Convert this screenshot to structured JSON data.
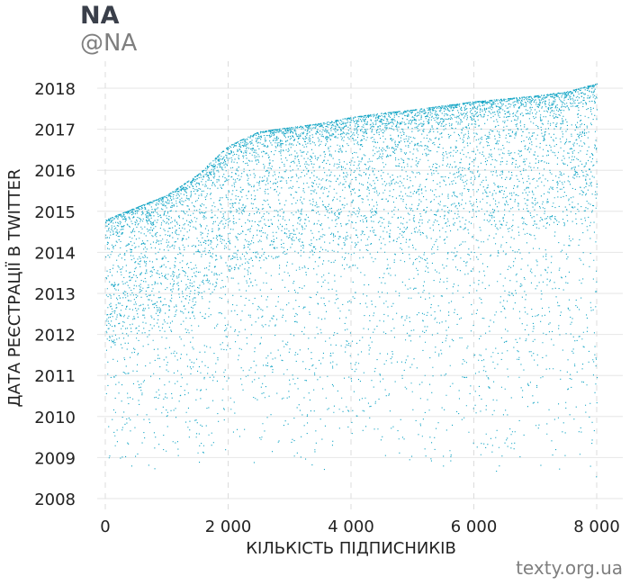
{
  "header": {
    "title": "NA",
    "subtitle": "@NA"
  },
  "footer": {
    "credit": "texty.org.ua"
  },
  "colors": {
    "points": "#0fa3c4",
    "grid": "#e6e6e6",
    "text": "#222222"
  },
  "chart_data": {
    "type": "scatter",
    "title": "NA",
    "subtitle": "@NA",
    "xlabel": "КІЛЬКІСТЬ ПІДПИСНИКІВ",
    "ylabel": "ДАТА РЕЄСТРАЦІЇ В TWITTER",
    "xlim": [
      0,
      8100
    ],
    "ylim": [
      2007.7,
      2018.3
    ],
    "x_ticks": [
      0,
      2000,
      4000,
      6000,
      8000
    ],
    "x_tick_labels": [
      "0",
      "2 000",
      "4 000",
      "6 000",
      "8 000"
    ],
    "y_ticks": [
      2008,
      2009,
      2010,
      2011,
      2012,
      2013,
      2014,
      2015,
      2016,
      2017,
      2018
    ],
    "y_tick_labels": [
      "2018",
      "2017",
      "2016",
      "2015",
      "2014",
      "2013",
      "2012",
      "2011",
      "2010",
      "2009",
      "2008"
    ],
    "grid": true,
    "vertical_grid": "dashed",
    "n_points": 8000,
    "upper_envelope": {
      "x": [
        0,
        500,
        1000,
        1500,
        2000,
        2500,
        3000,
        3500,
        4000,
        4500,
        5000,
        5500,
        6000,
        6500,
        7000,
        7500,
        8000
      ],
      "y": [
        2014.8,
        2015.1,
        2015.4,
        2015.9,
        2016.6,
        2016.95,
        2017.05,
        2017.15,
        2017.3,
        2017.4,
        2017.48,
        2017.58,
        2017.68,
        2017.75,
        2017.82,
        2017.92,
        2018.12
      ]
    }
  }
}
